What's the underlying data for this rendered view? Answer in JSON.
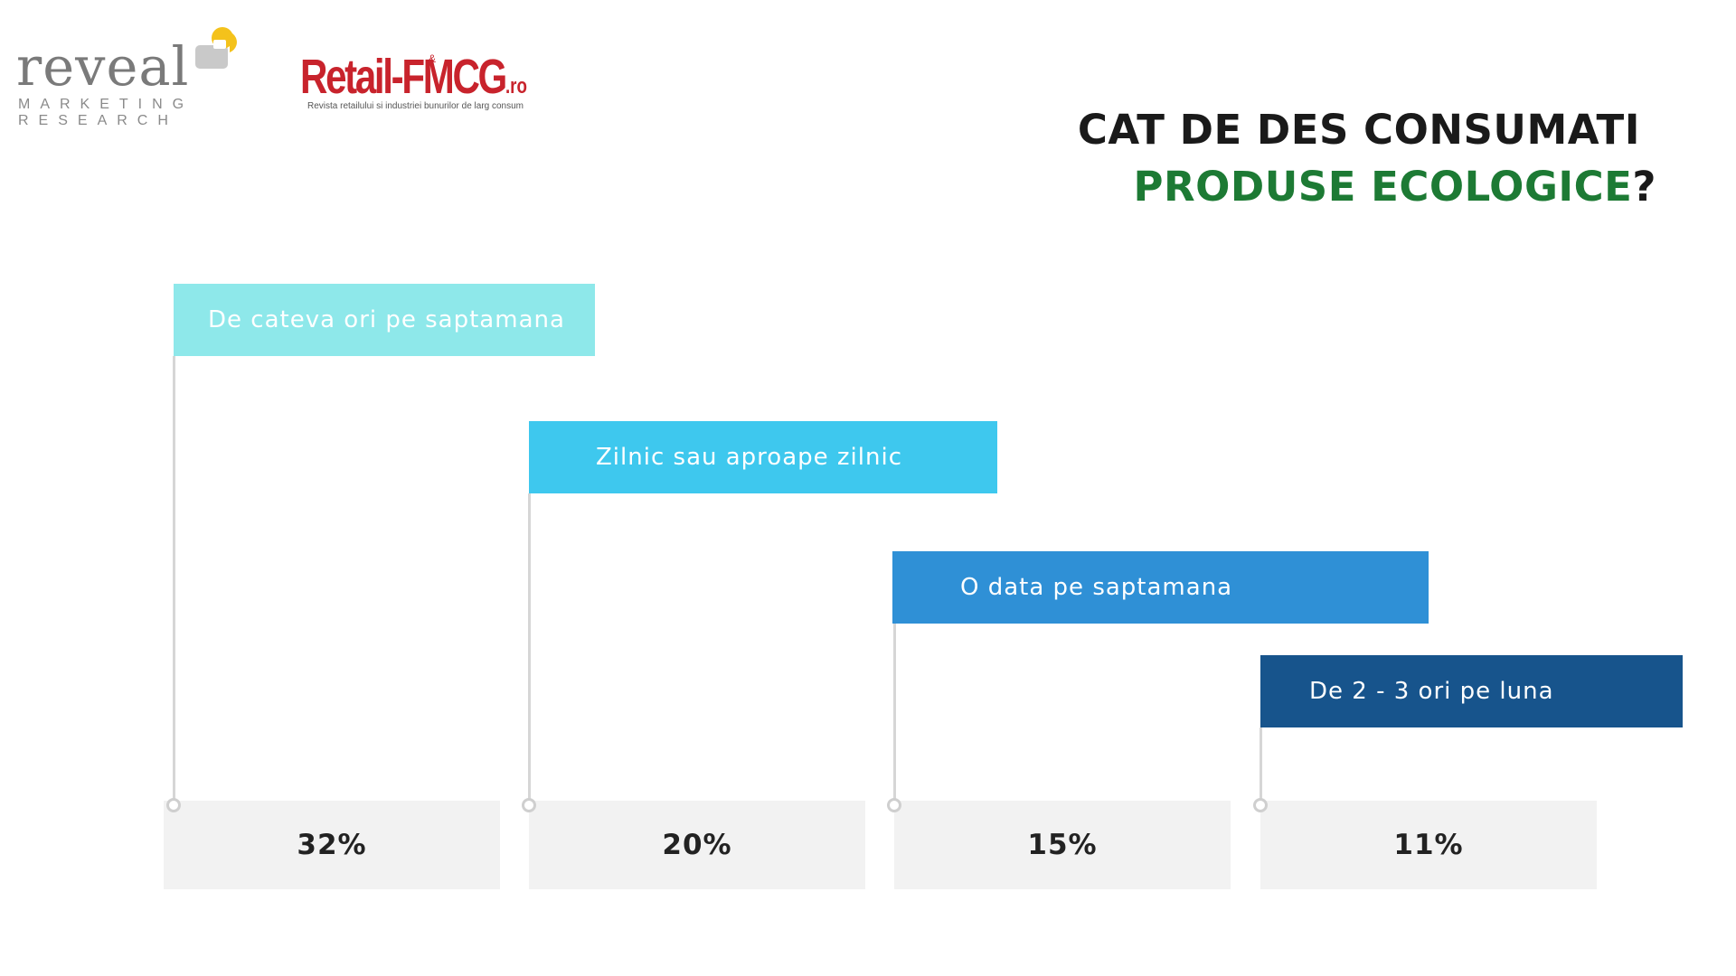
{
  "logos": {
    "reveal": {
      "word": "reveal",
      "sub_line1": "MARKETING",
      "sub_line2": "RESEARCH",
      "colors": {
        "text": "#7a7a7a",
        "square_gray": "#c9c9c9",
        "square_yellow": "#f4c21b"
      }
    },
    "retail_fmcg": {
      "word": "Retail-FMCG",
      "amp": "&",
      "suffix": ".ro",
      "tagline": "Revista retailului si industriei bunurilor de larg consum",
      "color": "#c8232c"
    }
  },
  "title": {
    "line1": "CAT DE DES CONSUMATI",
    "line2_accent": "PRODUSE ECOLOGICE",
    "line2_end": "?",
    "accent_color": "#1d7a34"
  },
  "chart_data": {
    "type": "bar",
    "categories": [
      "De cateva ori pe saptamana",
      "Zilnic sau aproape zilnic",
      "O data pe saptamana",
      "De 2 - 3 ori pe luna"
    ],
    "values": [
      32,
      20,
      15,
      11
    ],
    "value_labels": [
      "32%",
      "20%",
      "15%",
      "11%"
    ],
    "unit": "%",
    "colors": [
      "#8ee8ea",
      "#3ec8ee",
      "#2f90d6",
      "#17548c"
    ]
  }
}
